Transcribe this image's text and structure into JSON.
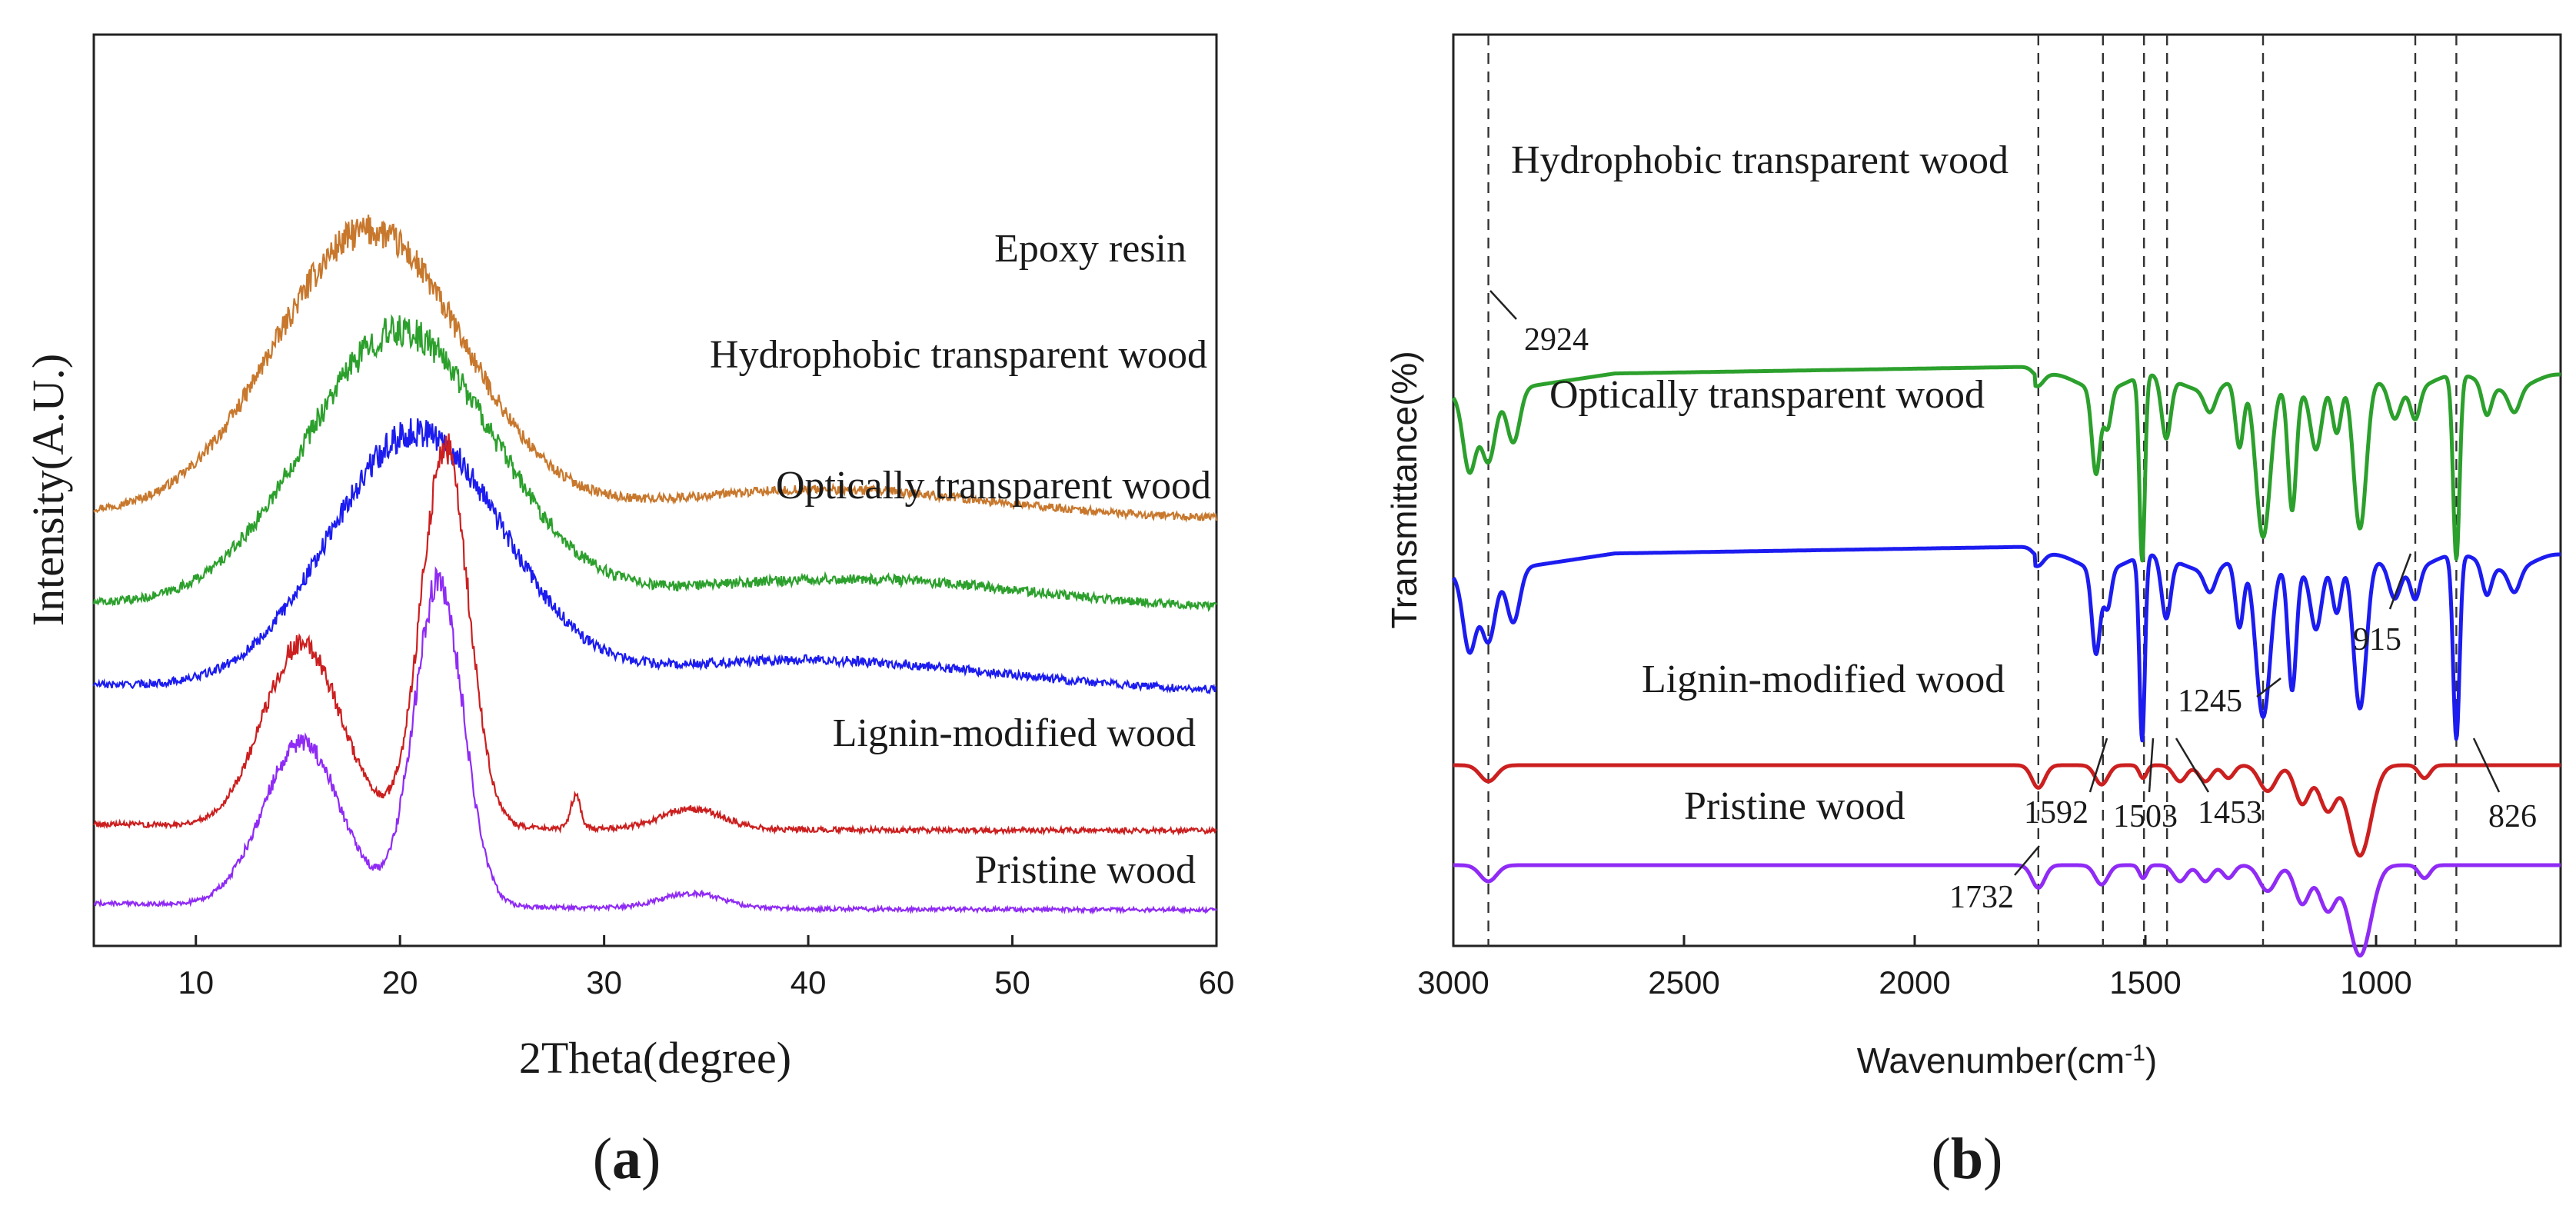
{
  "chart_data": [
    {
      "panel": "(a)",
      "type": "line",
      "xlabel": "2Theta(degree)",
      "ylabel": "Intensity(A.U.)",
      "xlim": [
        5,
        60
      ],
      "xticks": [
        10,
        20,
        30,
        40,
        50,
        60
      ],
      "y_scale": "arbitrary units, traces vertically offset",
      "grid": false,
      "series": [
        {
          "name": "Epoxy resin",
          "color": "#C8782D",
          "baseline": 3.85,
          "peaks": [
            {
              "x": 18.5,
              "height": 2.8,
              "width": 4.6
            },
            {
              "x": 41,
              "height": 0.28,
              "width": 8
            }
          ],
          "noise": 0.12
        },
        {
          "name": "Hydrophobic transparent wood",
          "color": "#2CA02C",
          "baseline": 2.95,
          "peaks": [
            {
              "x": 20,
              "height": 2.7,
              "width": 4.6
            },
            {
              "x": 42,
              "height": 0.3,
              "width": 9
            }
          ],
          "noise": 0.13
        },
        {
          "name": "Optically transparent wood",
          "color": "#1C1CF0",
          "baseline": 2.15,
          "peaks": [
            {
              "x": 20.8,
              "height": 2.5,
              "width": 4.2
            },
            {
              "x": 40,
              "height": 0.3,
              "width": 9
            }
          ],
          "noise": 0.12
        },
        {
          "name": "Lignin-modified wood",
          "color": "#CC1F1F",
          "baseline": 0.78,
          "peaks": [
            {
              "x": 15.2,
              "height": 1.8,
              "width": 1.9
            },
            {
              "x": 22.2,
              "height": 3.75,
              "width": 1.15
            },
            {
              "x": 28.6,
              "height": 0.32,
              "width": 0.25
            },
            {
              "x": 34.3,
              "height": 0.2,
              "width": 1.5
            }
          ],
          "noise": 0.09
        },
        {
          "name": "Pristine wood",
          "color": "#8F2BF5",
          "baseline": 0.0,
          "peaks": [
            {
              "x": 15.2,
              "height": 1.6,
              "width": 1.9
            },
            {
              "x": 21.9,
              "height": 3.2,
              "width": 1.2
            },
            {
              "x": 34.3,
              "height": 0.15,
              "width": 1.5
            }
          ],
          "noise": 0.07
        }
      ]
    },
    {
      "panel": "(b)",
      "type": "line",
      "xlabel": "Wavenumber(cm",
      "xlabel_superscript": "-1",
      "xlabel_close": ")",
      "ylabel": "Transmittance(%)",
      "xlim": [
        3000,
        600
      ],
      "xticks": [
        3000,
        2500,
        2000,
        1500,
        1000
      ],
      "reference_lines": [
        2924,
        1732,
        1592,
        1503,
        1453,
        1245,
        915,
        826
      ],
      "grid": false,
      "series": [
        {
          "name": "Hydrophobic transparent wood",
          "color": "#2CA02C",
          "baseline": 3.42,
          "amp": 1.0
        },
        {
          "name": "Optically transparent wood",
          "color": "#1C1CF0",
          "baseline": 2.25,
          "amp": 1.0
        },
        {
          "name": "Lignin-modified wood",
          "color": "#CC1F1F",
          "baseline": 0.95,
          "amp": 0.12
        },
        {
          "name": "Pristine wood",
          "color": "#8F2BF5",
          "baseline": 0.3,
          "amp": 0.12
        }
      ],
      "annotations": [
        "2924",
        "1732",
        "1592",
        "1503",
        "1453",
        "1245",
        "915",
        "826"
      ]
    }
  ],
  "figure": {
    "panel_a_label": "(a)",
    "panel_b_label": "(b)",
    "panel_a_open": "(",
    "panel_a_letter": "a",
    "panel_a_close": ")",
    "panel_b_open": "(",
    "panel_b_letter": "b",
    "panel_b_close": ")"
  }
}
